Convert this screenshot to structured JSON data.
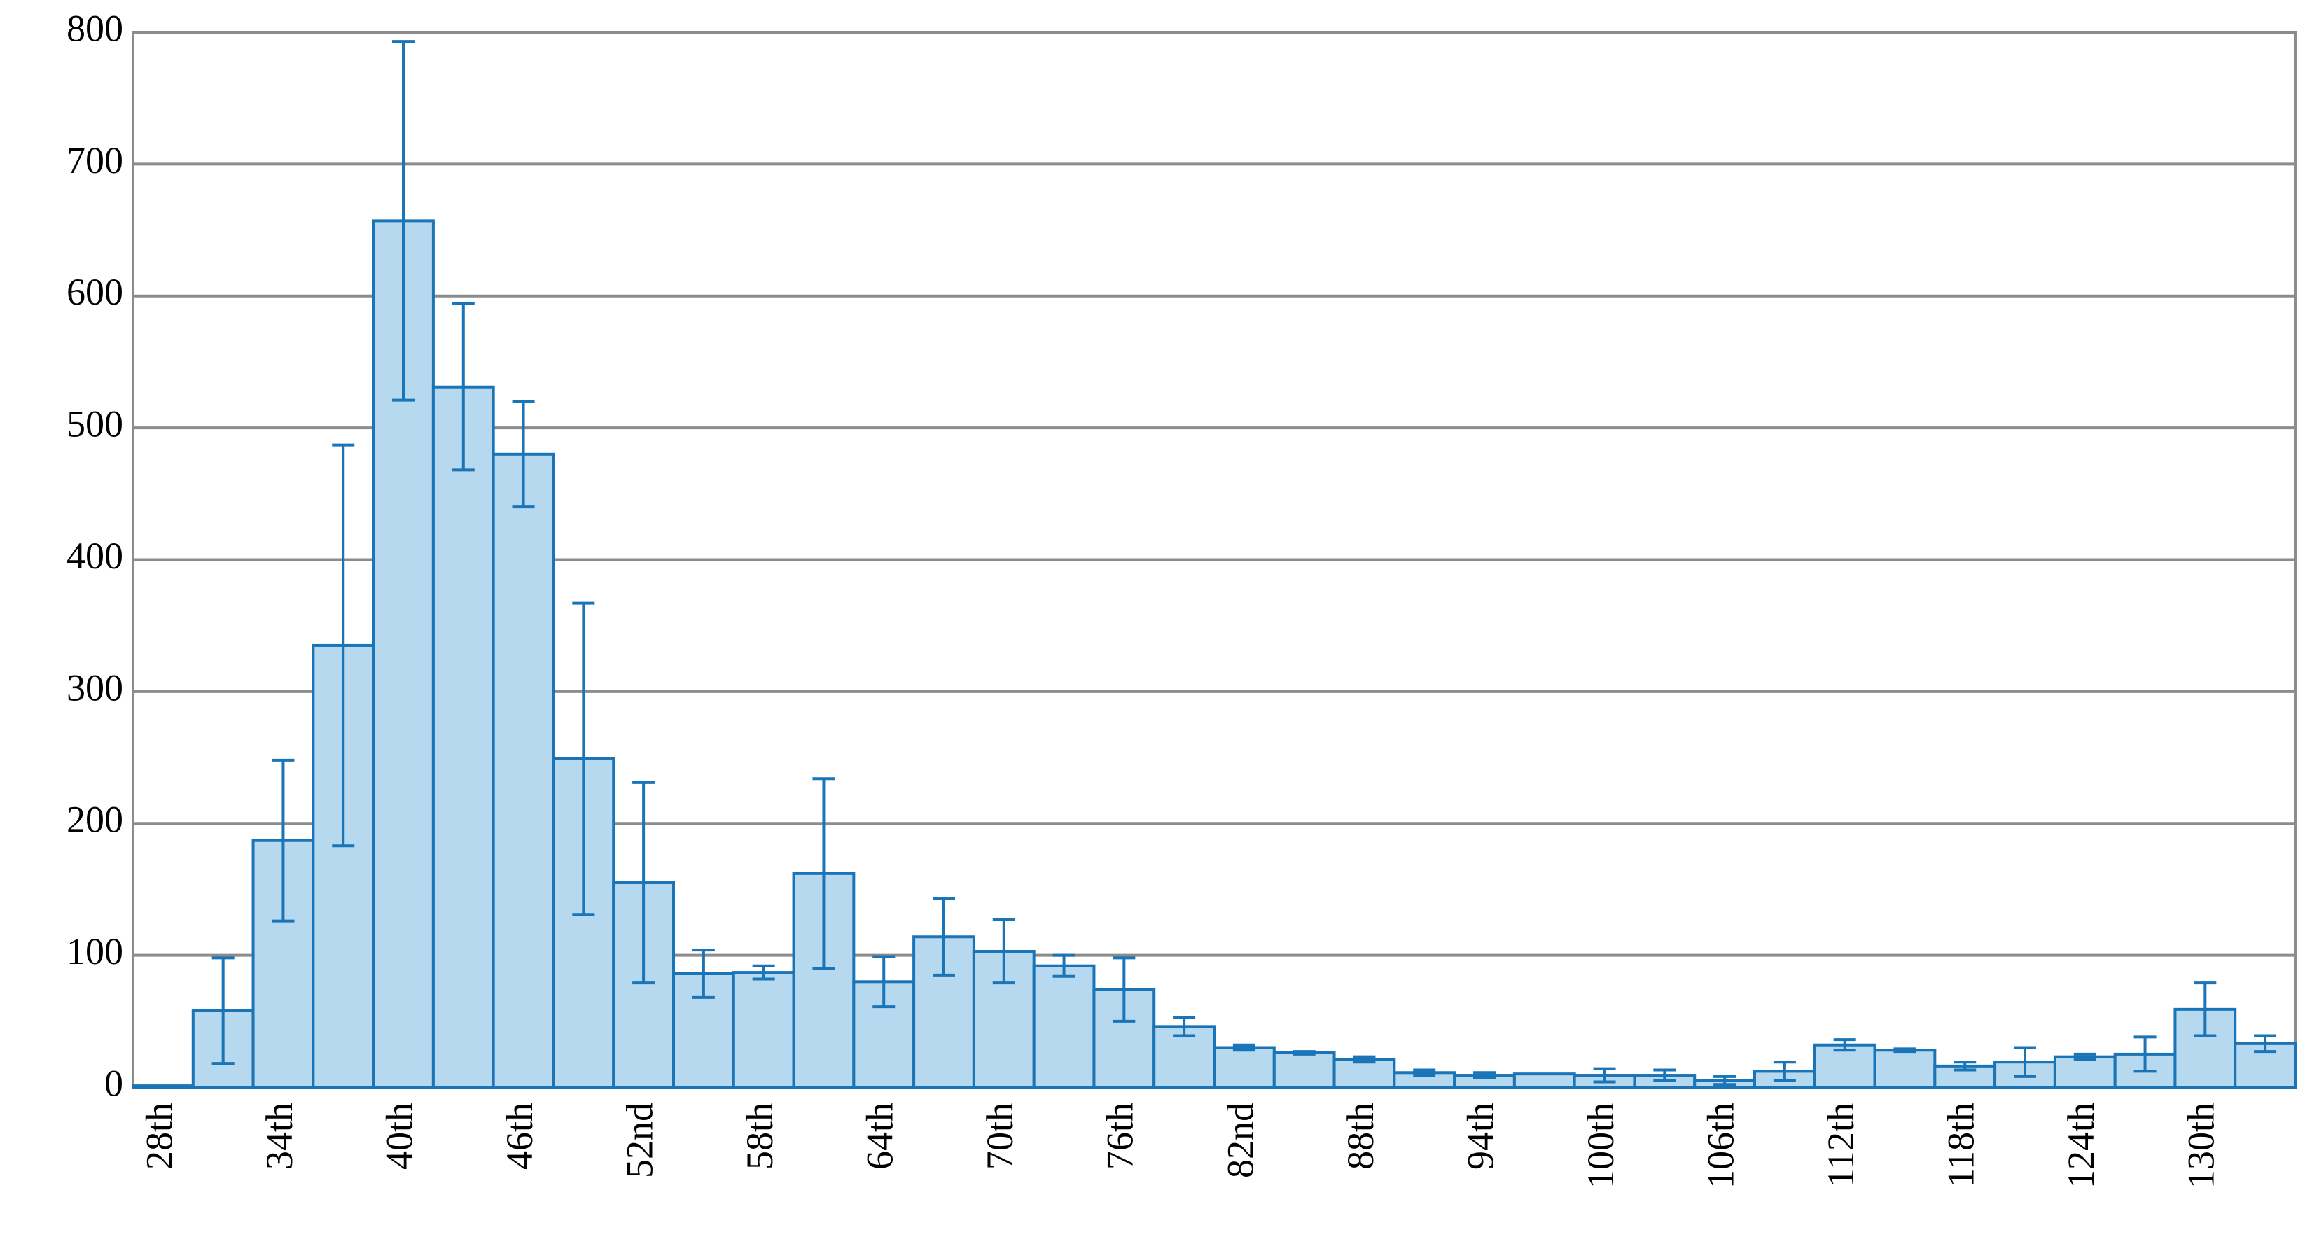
{
  "chart_data": {
    "type": "bar",
    "categories": [
      "28th",
      null,
      "34th",
      null,
      "40th",
      null,
      "46th",
      null,
      "52nd",
      null,
      "58th",
      null,
      "64th",
      null,
      "70th",
      null,
      "76th",
      null,
      "82nd",
      null,
      "88th",
      null,
      "94th",
      null,
      "100th",
      null,
      "106th",
      null,
      "112th",
      null,
      "118th",
      null,
      "124th",
      null,
      "130th",
      null
    ],
    "values": [
      1,
      58,
      187,
      335,
      657,
      531,
      480,
      249,
      155,
      86,
      87,
      162,
      80,
      114,
      103,
      92,
      74,
      46,
      30,
      26,
      21,
      11,
      9,
      10,
      9,
      9,
      5,
      12,
      32,
      28,
      16,
      19,
      23,
      25,
      59,
      33
    ],
    "errors": [
      0,
      40,
      61,
      152,
      136,
      63,
      40,
      118,
      76,
      18,
      5,
      72,
      19,
      29,
      24,
      8,
      24,
      7,
      2,
      1,
      2,
      2,
      2,
      0,
      5,
      4,
      3,
      7,
      4,
      1,
      3,
      11,
      2,
      13,
      20,
      6
    ],
    "color": "#b7d9f0",
    "edge_color": "#1a74b8",
    "ylim": [
      0,
      800
    ],
    "yticks": [
      0,
      100,
      200,
      300,
      400,
      500,
      600,
      700,
      800
    ],
    "grid": true
  }
}
